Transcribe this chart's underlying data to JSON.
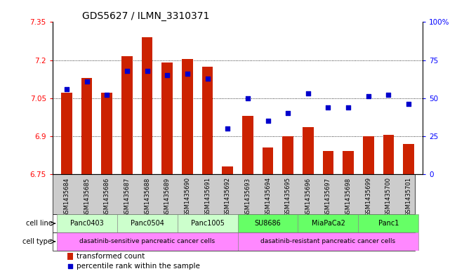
{
  "title": "GDS5627 / ILMN_3310371",
  "samples": [
    "GSM1435684",
    "GSM1435685",
    "GSM1435686",
    "GSM1435687",
    "GSM1435688",
    "GSM1435689",
    "GSM1435690",
    "GSM1435691",
    "GSM1435692",
    "GSM1435693",
    "GSM1435694",
    "GSM1435695",
    "GSM1435696",
    "GSM1435697",
    "GSM1435698",
    "GSM1435699",
    "GSM1435700",
    "GSM1435701"
  ],
  "bar_values": [
    7.07,
    7.13,
    7.07,
    7.215,
    7.29,
    7.19,
    7.205,
    7.175,
    6.78,
    6.98,
    6.855,
    6.9,
    6.935,
    6.84,
    6.84,
    6.9,
    6.905,
    6.87
  ],
  "dot_values": [
    56,
    61,
    52,
    68,
    68,
    65,
    66,
    63,
    30,
    50,
    35,
    40,
    53,
    44,
    44,
    51,
    52,
    46
  ],
  "ylim": [
    6.75,
    7.35
  ],
  "yticks": [
    6.75,
    6.9,
    7.05,
    7.2,
    7.35
  ],
  "right_ylim": [
    0,
    100
  ],
  "right_yticks": [
    0,
    25,
    50,
    75,
    100
  ],
  "right_yticklabels": [
    "0",
    "25",
    "50",
    "75",
    "100%"
  ],
  "bar_color": "#cc2200",
  "dot_color": "#0000cc",
  "cell_lines": [
    {
      "label": "Panc0403",
      "start": 0,
      "end": 2,
      "color": "#ccffcc"
    },
    {
      "label": "Panc0504",
      "start": 3,
      "end": 5,
      "color": "#ccffcc"
    },
    {
      "label": "Panc1005",
      "start": 6,
      "end": 8,
      "color": "#ccffcc"
    },
    {
      "label": "SU8686",
      "start": 9,
      "end": 11,
      "color": "#66ff66"
    },
    {
      "label": "MiaPaCa2",
      "start": 12,
      "end": 14,
      "color": "#66ff66"
    },
    {
      "label": "Panc1",
      "start": 15,
      "end": 17,
      "color": "#66ff66"
    }
  ],
  "cell_types": [
    {
      "label": "dasatinib-sensitive pancreatic cancer cells",
      "start": 0,
      "end": 8,
      "color": "#ff88ff"
    },
    {
      "label": "dasatinib-resistant pancreatic cancer cells",
      "start": 9,
      "end": 17,
      "color": "#ff88ff"
    }
  ],
  "sample_box_color": "#cccccc",
  "legend_items": [
    {
      "color": "#cc2200",
      "label": "transformed count"
    },
    {
      "color": "#0000cc",
      "label": "percentile rank within the sample"
    }
  ],
  "title_fontsize": 10
}
